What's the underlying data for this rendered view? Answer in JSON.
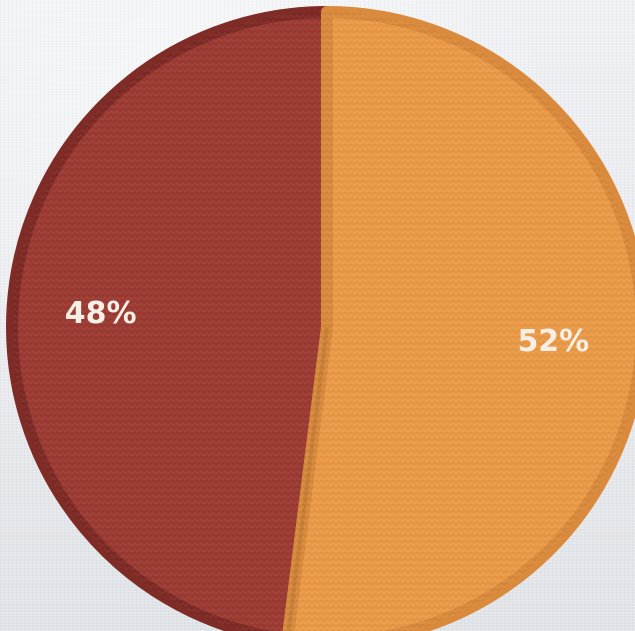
{
  "chart_data": {
    "type": "pie",
    "categories": [
      "",
      ""
    ],
    "values": [
      48,
      52
    ],
    "labels": [
      "48%",
      "52%"
    ],
    "colors": [
      "#9c3b33",
      "#eb9a48"
    ],
    "edge_colors": [
      "#7f2b26",
      "#d98a3c"
    ],
    "start_angle_deg": 0,
    "legend": "none",
    "title": ""
  }
}
